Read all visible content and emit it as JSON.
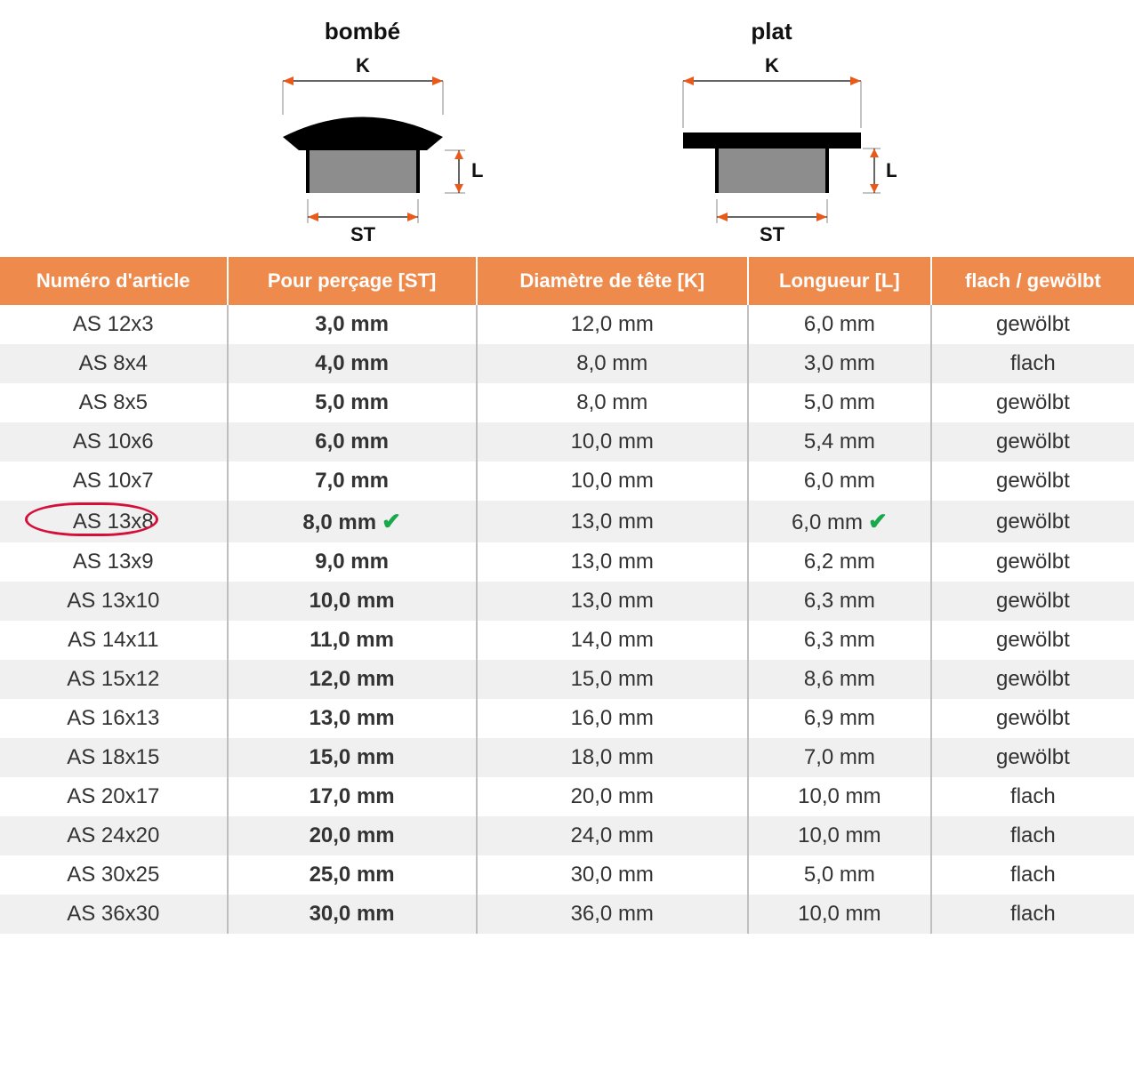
{
  "diagrams": {
    "left": {
      "title": "bombé",
      "labels": {
        "K": "K",
        "L": "L",
        "ST": "ST"
      }
    },
    "right": {
      "title": "plat",
      "labels": {
        "K": "K",
        "L": "L",
        "ST": "ST"
      }
    }
  },
  "table": {
    "header_bg": "#ee8a4c",
    "header_fg": "#ffffff",
    "row_alt_bg": "#f0f0f0",
    "border_color": "#bfbfbf",
    "highlight_color": "#d4103a",
    "check_color": "#1aa84d",
    "text_color": "#333333",
    "columns": [
      "Numéro d'article",
      "Pour perçage [ST]",
      "Diamètre de tête [K]",
      "Longueur [L]",
      "flach / gewölbt"
    ],
    "rows": [
      {
        "article": "AS 12x3",
        "st": "3,0 mm",
        "k": "12,0 mm",
        "l": "6,0 mm",
        "type": "gewölbt",
        "highlight": false,
        "check_st": false,
        "check_l": false
      },
      {
        "article": "AS 8x4",
        "st": "4,0 mm",
        "k": "8,0 mm",
        "l": "3,0 mm",
        "type": "flach",
        "highlight": false,
        "check_st": false,
        "check_l": false
      },
      {
        "article": "AS 8x5",
        "st": "5,0 mm",
        "k": "8,0 mm",
        "l": "5,0 mm",
        "type": "gewölbt",
        "highlight": false,
        "check_st": false,
        "check_l": false
      },
      {
        "article": "AS 10x6",
        "st": "6,0 mm",
        "k": "10,0 mm",
        "l": "5,4 mm",
        "type": "gewölbt",
        "highlight": false,
        "check_st": false,
        "check_l": false
      },
      {
        "article": "AS 10x7",
        "st": "7,0 mm",
        "k": "10,0 mm",
        "l": "6,0 mm",
        "type": "gewölbt",
        "highlight": false,
        "check_st": false,
        "check_l": false
      },
      {
        "article": "AS 13x8",
        "st": "8,0 mm",
        "k": "13,0 mm",
        "l": "6,0 mm",
        "type": "gewölbt",
        "highlight": true,
        "check_st": true,
        "check_l": true
      },
      {
        "article": "AS 13x9",
        "st": "9,0 mm",
        "k": "13,0 mm",
        "l": "6,2 mm",
        "type": "gewölbt",
        "highlight": false,
        "check_st": false,
        "check_l": false
      },
      {
        "article": "AS 13x10",
        "st": "10,0 mm",
        "k": "13,0 mm",
        "l": "6,3 mm",
        "type": "gewölbt",
        "highlight": false,
        "check_st": false,
        "check_l": false
      },
      {
        "article": "AS 14x11",
        "st": "11,0 mm",
        "k": "14,0 mm",
        "l": "6,3 mm",
        "type": "gewölbt",
        "highlight": false,
        "check_st": false,
        "check_l": false
      },
      {
        "article": "AS 15x12",
        "st": "12,0 mm",
        "k": "15,0 mm",
        "l": "8,6 mm",
        "type": "gewölbt",
        "highlight": false,
        "check_st": false,
        "check_l": false
      },
      {
        "article": "AS 16x13",
        "st": "13,0 mm",
        "k": "16,0 mm",
        "l": "6,9 mm",
        "type": "gewölbt",
        "highlight": false,
        "check_st": false,
        "check_l": false
      },
      {
        "article": "AS 18x15",
        "st": "15,0 mm",
        "k": "18,0 mm",
        "l": "7,0 mm",
        "type": "gewölbt",
        "highlight": false,
        "check_st": false,
        "check_l": false
      },
      {
        "article": "AS 20x17",
        "st": "17,0 mm",
        "k": "20,0 mm",
        "l": "10,0 mm",
        "type": "flach",
        "highlight": false,
        "check_st": false,
        "check_l": false
      },
      {
        "article": "AS 24x20",
        "st": "20,0 mm",
        "k": "24,0 mm",
        "l": "10,0 mm",
        "type": "flach",
        "highlight": false,
        "check_st": false,
        "check_l": false
      },
      {
        "article": "AS 30x25",
        "st": "25,0 mm",
        "k": "30,0 mm",
        "l": "5,0 mm",
        "type": "flach",
        "highlight": false,
        "check_st": false,
        "check_l": false
      },
      {
        "article": "AS 36x30",
        "st": "30,0 mm",
        "k": "36,0 mm",
        "l": "10,0 mm",
        "type": "flach",
        "highlight": false,
        "check_st": false,
        "check_l": false
      }
    ]
  },
  "diagram_colors": {
    "cap_fill": "#000000",
    "stem_fill": "#8d8d8d",
    "dim_line": "#333333",
    "arrow": "#e85a1a",
    "ext_line": "#888888"
  }
}
